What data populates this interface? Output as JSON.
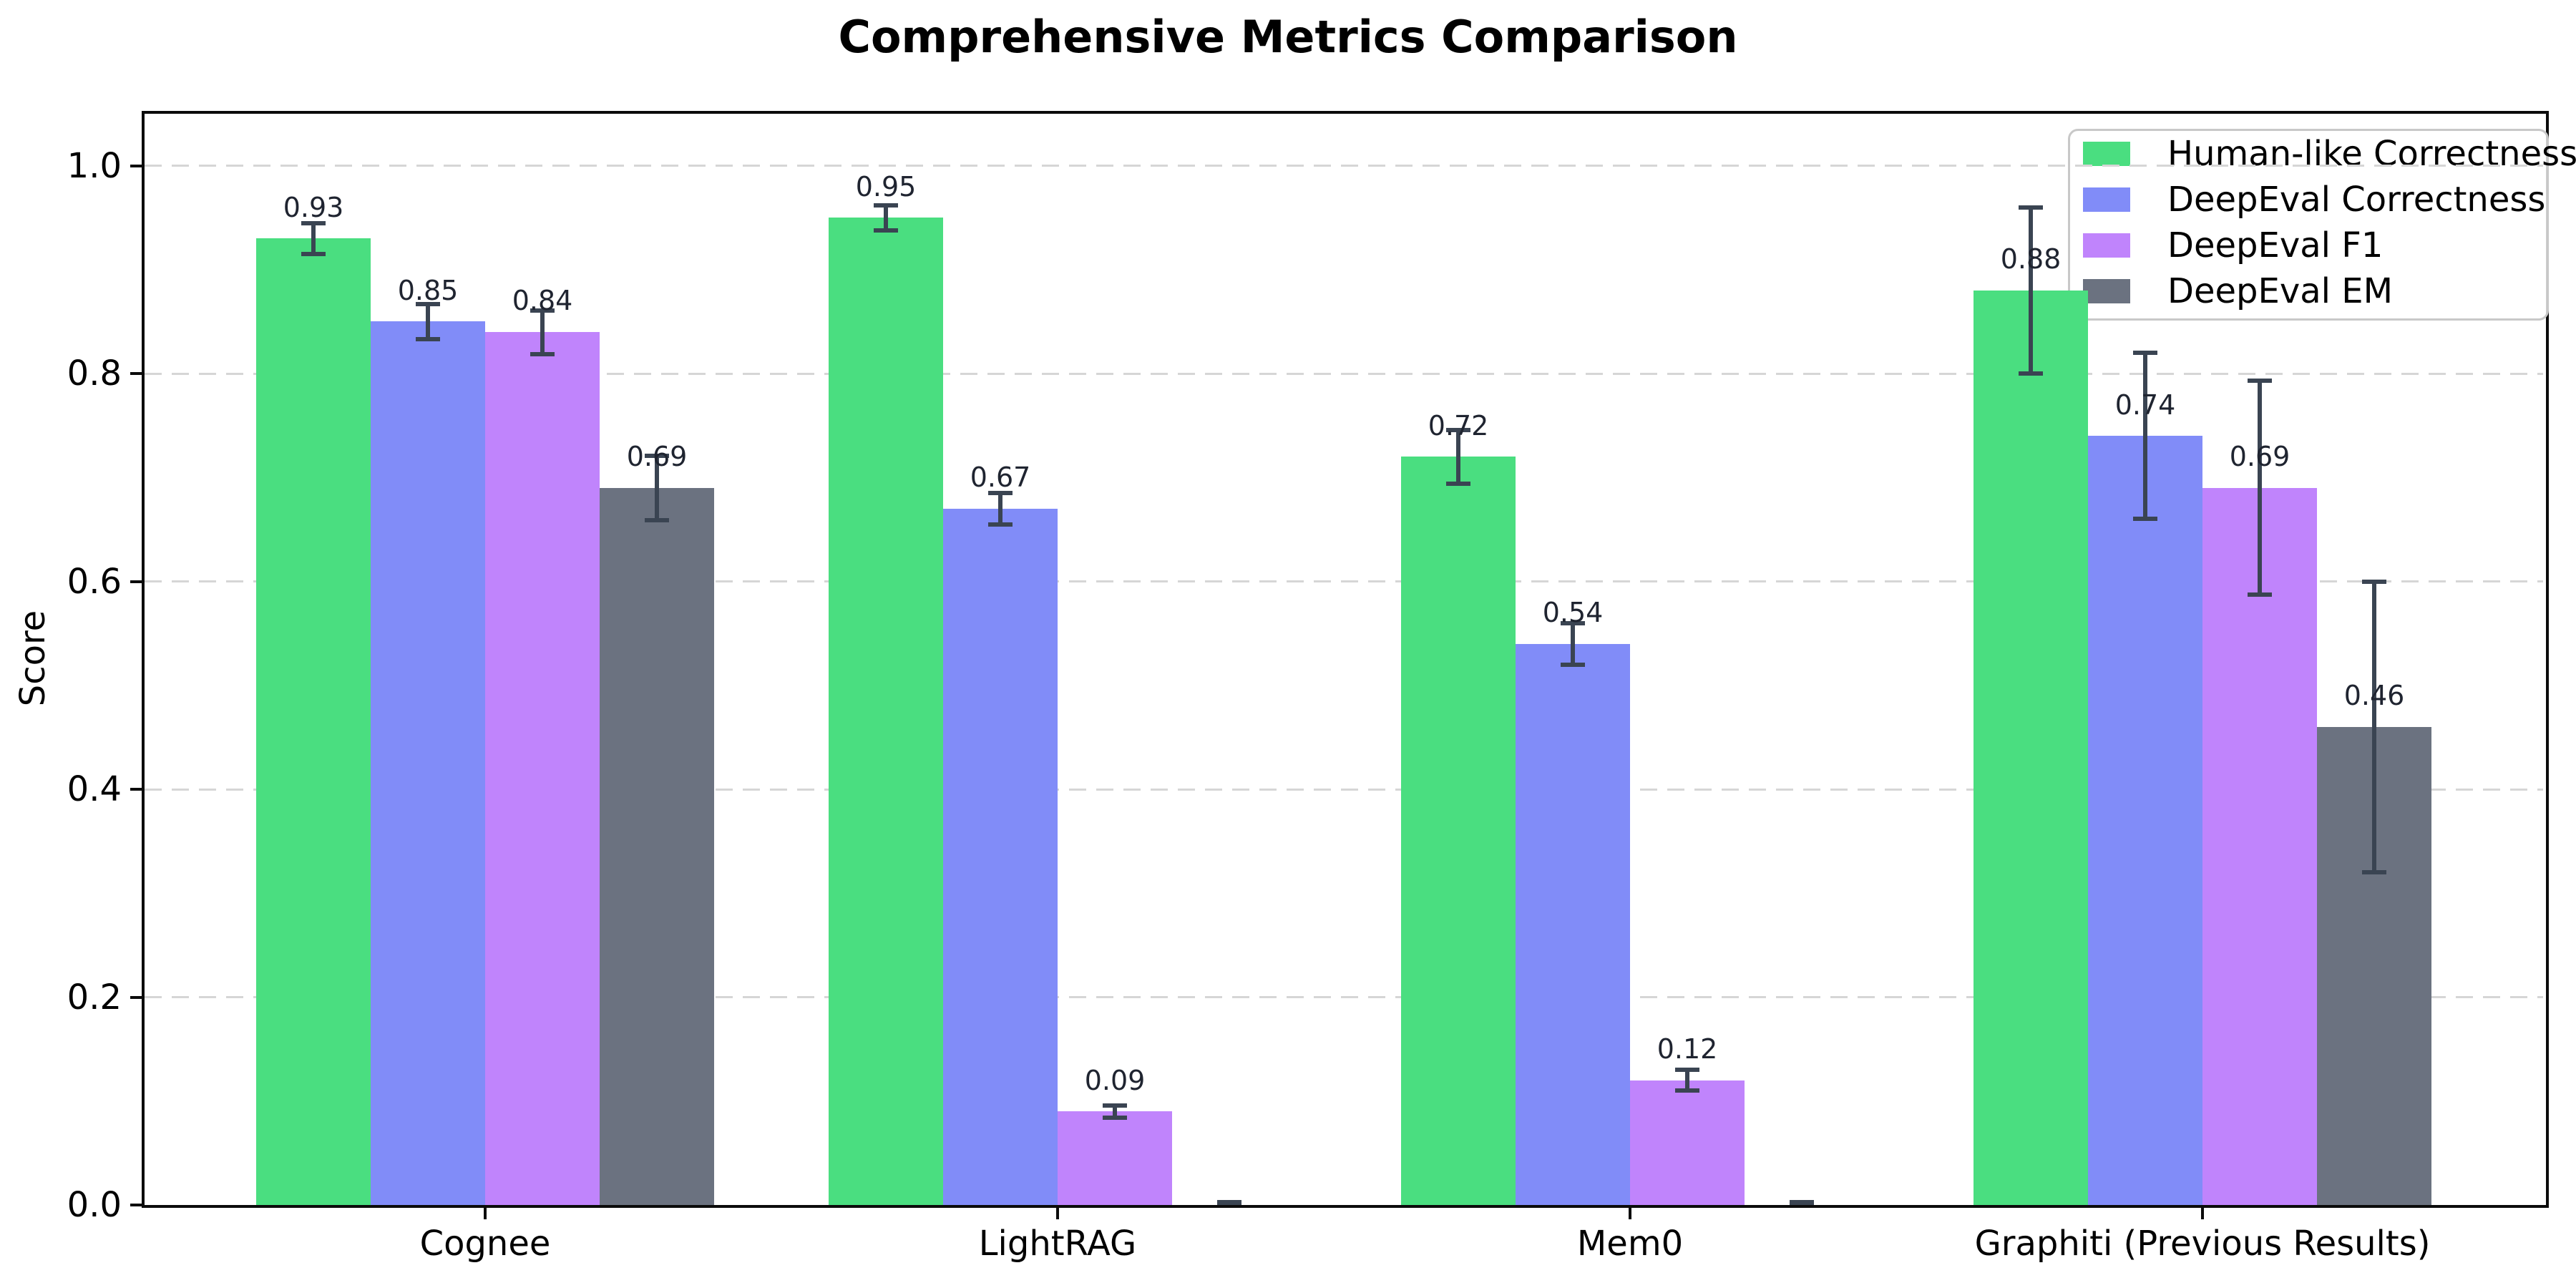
{
  "chart_data": {
    "type": "bar",
    "title": "Comprehensive Metrics Comparison",
    "ylabel": "Score",
    "xlabel": "",
    "categories": [
      "Cognee",
      "LightRAG",
      "Mem0",
      "Graphiti (Previous Results)"
    ],
    "series": [
      {
        "name": "Human-like Correctness",
        "color": "#4ade80",
        "values": [
          0.93,
          0.95,
          0.72,
          0.88
        ],
        "errors": [
          0.015,
          0.012,
          0.026,
          0.08
        ],
        "labels": [
          "0.93",
          "0.95",
          "0.72",
          "0.88"
        ]
      },
      {
        "name": "DeepEval Correctness",
        "color": "#818cf8",
        "values": [
          0.85,
          0.67,
          0.54,
          0.74
        ],
        "errors": [
          0.017,
          0.015,
          0.02,
          0.08
        ],
        "labels": [
          "0.85",
          "0.67",
          "0.54",
          "0.74"
        ]
      },
      {
        "name": "DeepEval F1",
        "color": "#c084fc",
        "values": [
          0.84,
          0.09,
          0.12,
          0.69
        ],
        "errors": [
          0.021,
          0.006,
          0.01,
          0.103
        ],
        "labels": [
          "0.84",
          "0.09",
          "0.12",
          "0.69"
        ]
      },
      {
        "name": "DeepEval EM",
        "color": "#6b7280",
        "values": [
          0.69,
          0.0,
          0.0,
          0.46
        ],
        "errors": [
          0.031,
          0.003,
          0.003,
          0.14
        ],
        "labels": [
          "0.69",
          "",
          "",
          "0.46"
        ]
      }
    ],
    "yticks": [
      {
        "value": 0.0,
        "label": "0.0"
      },
      {
        "value": 0.2,
        "label": "0.2"
      },
      {
        "value": 0.4,
        "label": "0.4"
      },
      {
        "value": 0.6,
        "label": "0.6"
      },
      {
        "value": 0.8,
        "label": "0.8"
      },
      {
        "value": 1.0,
        "label": "1.0"
      }
    ],
    "ylim": [
      0,
      1.05
    ],
    "grid": "horizontal-dashed",
    "legend": {
      "position": "upper-right"
    },
    "colors": {
      "error_bar": "#3a4452",
      "grid": "#d6d6d6",
      "axis": "#0b0b0b",
      "value_label": "#1f2430",
      "background": "#ffffff"
    }
  }
}
